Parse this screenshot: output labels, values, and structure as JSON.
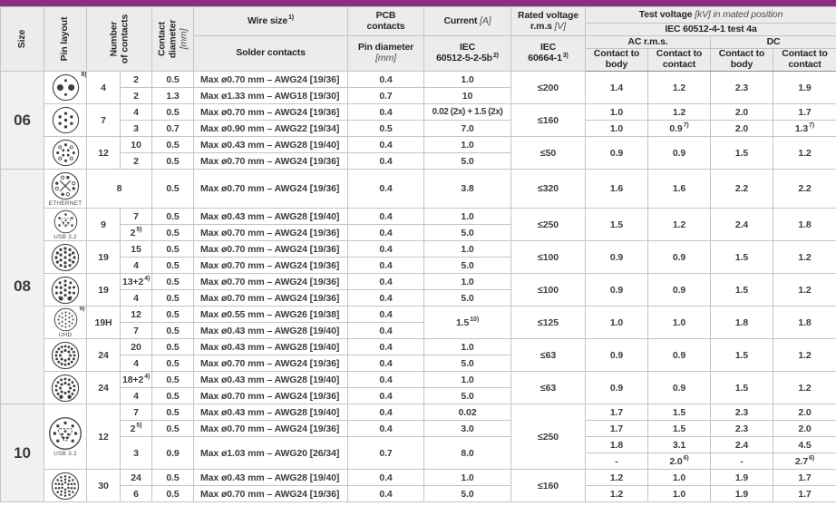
{
  "accent_color": "#8e2b86",
  "header": {
    "size": "Size",
    "pin_layout": "Pin layout",
    "number_l1": "Number",
    "number_l2": "of contacts",
    "contact_l1": "Contact",
    "contact_l2": "diameter",
    "contact_unit": "[mm]",
    "wire_size": "Wire size",
    "wire_size_sup": "1)",
    "solder_contacts": "Solder contacts",
    "pcb_l1": "PCB",
    "pcb_l2": "contacts",
    "pin_diameter": "Pin diameter",
    "pin_diameter_unit": "[mm]",
    "current": "Current",
    "current_unit": "[A]",
    "current_std_l1": "IEC",
    "current_std_l2": "60512-5-2-5b",
    "current_std_sup": "2)",
    "rated_voltage": "Rated voltage",
    "rated_voltage_l2": "r.m.s",
    "rated_voltage_unit": "[V]",
    "rated_std_l1": "IEC",
    "rated_std_l2": "60664-1",
    "rated_std_sup": "3)",
    "test_voltage": "Test voltage",
    "test_voltage_note": "[kV] in mated position",
    "test_std": "IEC 60512-4-1 test 4a",
    "ac": "AC r.m.s.",
    "dc": "DC",
    "ctb": "Contact to body",
    "ctc": "Contact to contact"
  },
  "body_rows": [
    {
      "cells": [
        {
          "t": "06",
          "rs": 6,
          "cls": "sz",
          "name": "size-label"
        },
        {
          "icon": "pin-4",
          "sup": "8)",
          "rs": 2
        },
        {
          "t": "4",
          "rs": 2
        },
        {
          "t": "2"
        },
        {
          "t": "0.5"
        },
        {
          "t": "Max ø0.70 mm – AWG24  [19/36]",
          "cls": "lt"
        },
        {
          "t": "0.4"
        },
        {
          "t": "1.0"
        },
        {
          "t": "≤200",
          "rs": 2
        },
        {
          "t": "1.4",
          "rs": 2
        },
        {
          "t": "1.2",
          "rs": 2
        },
        {
          "t": "2.3",
          "rs": 2
        },
        {
          "t": "1.9",
          "rs": 2
        }
      ]
    },
    {
      "cells": [
        {
          "t": "2"
        },
        {
          "t": "1.3"
        },
        {
          "t": "Max ø1.33 mm – AWG18  [19/30]",
          "cls": "lt"
        },
        {
          "t": "0.7"
        },
        {
          "t": "10"
        }
      ]
    },
    {
      "cls": "g",
      "cells": [
        {
          "icon": "pin-7",
          "rs": 2
        },
        {
          "t": "7",
          "rs": 2
        },
        {
          "t": "4"
        },
        {
          "t": "0.5"
        },
        {
          "t": "Max ø0.70 mm – AWG24  [19/36]",
          "cls": "lt"
        },
        {
          "t": "0.4"
        },
        {
          "t": "0.02 (2x) + 1.5 (2x)",
          "cls": "tt"
        },
        {
          "t": "≤160",
          "rs": 2
        },
        {
          "t": "1.0"
        },
        {
          "t": "1.2"
        },
        {
          "t": "2.0"
        },
        {
          "t": "1.7"
        }
      ]
    },
    {
      "cells": [
        {
          "t": "3"
        },
        {
          "t": "0.7"
        },
        {
          "t": "Max ø0.90 mm – AWG22  [19/34]",
          "cls": "lt"
        },
        {
          "t": "0.5"
        },
        {
          "t": "7.0"
        },
        {
          "t": "1.0"
        },
        {
          "t": "0.9",
          "sup": "7)"
        },
        {
          "t": "2.0"
        },
        {
          "t": "1.3",
          "sup": "7)"
        }
      ]
    },
    {
      "cls": "g",
      "cells": [
        {
          "icon": "pin-12",
          "rs": 2
        },
        {
          "t": "12",
          "rs": 2
        },
        {
          "t": "10"
        },
        {
          "t": "0.5"
        },
        {
          "t": "Max ø0.43 mm – AWG28  [19/40]",
          "cls": "lt"
        },
        {
          "t": "0.4"
        },
        {
          "t": "1.0"
        },
        {
          "t": "≤50",
          "rs": 2
        },
        {
          "t": "0.9",
          "rs": 2
        },
        {
          "t": "0.9",
          "rs": 2
        },
        {
          "t": "1.5",
          "rs": 2
        },
        {
          "t": "1.2",
          "rs": 2
        }
      ]
    },
    {
      "cells": [
        {
          "t": "2"
        },
        {
          "t": "0.5"
        },
        {
          "t": "Max ø0.70 mm – AWG24  [19/36]",
          "cls": "lt"
        },
        {
          "t": "0.4"
        },
        {
          "t": "5.0"
        }
      ]
    },
    {
      "cls": "s",
      "cells": [
        {
          "t": "08",
          "rs": 13,
          "cls": "sz",
          "name": "size-label"
        },
        {
          "icon": "eth-8",
          "label": "ETHERNET",
          "name": "ethernet-pin-layout-icon"
        },
        {
          "t": "8",
          "cs": 2
        },
        {
          "t": "0.5"
        },
        {
          "t": "Max ø0.70 mm – AWG24  [19/36]",
          "cls": "lt"
        },
        {
          "t": "0.4"
        },
        {
          "t": "3.8"
        },
        {
          "t": "≤320"
        },
        {
          "t": "1.6"
        },
        {
          "t": "1.6"
        },
        {
          "t": "2.2"
        },
        {
          "t": "2.2"
        }
      ]
    },
    {
      "cls": "g",
      "cells": [
        {
          "icon": "usb-9",
          "label": "USB 3.2",
          "rs": 2,
          "name": "usb32-pin-layout-icon"
        },
        {
          "t": "9",
          "rs": 2
        },
        {
          "t": "7"
        },
        {
          "t": "0.5"
        },
        {
          "t": "Max ø0.43 mm – AWG28  [19/40]",
          "cls": "lt"
        },
        {
          "t": "0.4"
        },
        {
          "t": "1.0"
        },
        {
          "t": "≤250",
          "rs": 2
        },
        {
          "t": "1.5",
          "rs": 2
        },
        {
          "t": "1.2",
          "rs": 2
        },
        {
          "t": "2.4",
          "rs": 2
        },
        {
          "t": "1.8",
          "rs": 2
        }
      ]
    },
    {
      "cells": [
        {
          "t": "2",
          "sup": "5)"
        },
        {
          "t": "0.5"
        },
        {
          "t": "Max ø0.70 mm – AWG24  [19/36]",
          "cls": "lt"
        },
        {
          "t": "0.4"
        },
        {
          "t": "5.0"
        }
      ]
    },
    {
      "cls": "g",
      "cells": [
        {
          "icon": "pin-19",
          "rs": 2
        },
        {
          "t": "19",
          "rs": 2
        },
        {
          "t": "15"
        },
        {
          "t": "0.5"
        },
        {
          "t": "Max ø0.70 mm – AWG24  [19/36]",
          "cls": "lt"
        },
        {
          "t": "0.4"
        },
        {
          "t": "1.0"
        },
        {
          "t": "≤100",
          "rs": 2
        },
        {
          "t": "0.9",
          "rs": 2
        },
        {
          "t": "0.9",
          "rs": 2
        },
        {
          "t": "1.5",
          "rs": 2
        },
        {
          "t": "1.2",
          "rs": 2
        }
      ]
    },
    {
      "cells": [
        {
          "t": "4"
        },
        {
          "t": "0.5"
        },
        {
          "t": "Max ø0.70 mm – AWG24  [19/36]",
          "cls": "lt"
        },
        {
          "t": "0.4"
        },
        {
          "t": "5.0"
        }
      ]
    },
    {
      "cls": "g",
      "cells": [
        {
          "icon": "pin-19-aux",
          "rs": 2
        },
        {
          "t": "19",
          "rs": 2
        },
        {
          "t": "13+2",
          "sup": "4)"
        },
        {
          "t": "0.5"
        },
        {
          "t": "Max ø0.70 mm – AWG24  [19/36]",
          "cls": "lt"
        },
        {
          "t": "0.4"
        },
        {
          "t": "1.0"
        },
        {
          "t": "≤100",
          "rs": 2
        },
        {
          "t": "0.9",
          "rs": 2
        },
        {
          "t": "0.9",
          "rs": 2
        },
        {
          "t": "1.5",
          "rs": 2
        },
        {
          "t": "1.2",
          "rs": 2
        }
      ]
    },
    {
      "cells": [
        {
          "t": "4"
        },
        {
          "t": "0.5"
        },
        {
          "t": "Max ø0.70 mm – AWG24  [19/36]",
          "cls": "lt"
        },
        {
          "t": "0.4"
        },
        {
          "t": "5.0"
        }
      ]
    },
    {
      "cls": "g",
      "cells": [
        {
          "icon": "pin-19h",
          "sup": "9)",
          "label": "UHD",
          "rs": 2,
          "name": "uhd-pin-layout-icon"
        },
        {
          "t": "19H",
          "rs": 2
        },
        {
          "t": "12"
        },
        {
          "t": "0.5"
        },
        {
          "t": "Max ø0.55 mm – AWG26  [19/38]",
          "cls": "lt"
        },
        {
          "t": "0.4"
        },
        {
          "t": "1.5",
          "sup": "10)",
          "rs": 2
        },
        {
          "t": "≤125",
          "rs": 2
        },
        {
          "t": "1.0",
          "rs": 2
        },
        {
          "t": "1.0",
          "rs": 2
        },
        {
          "t": "1.8",
          "rs": 2
        },
        {
          "t": "1.8",
          "rs": 2
        }
      ]
    },
    {
      "cells": [
        {
          "t": "7"
        },
        {
          "t": "0.5"
        },
        {
          "t": "Max ø0.43 mm – AWG28  [19/40]",
          "cls": "lt"
        },
        {
          "t": "0.4"
        }
      ]
    },
    {
      "cls": "g",
      "cells": [
        {
          "icon": "pin-24",
          "rs": 2
        },
        {
          "t": "24",
          "rs": 2
        },
        {
          "t": "20"
        },
        {
          "t": "0.5"
        },
        {
          "t": "Max ø0.43 mm – AWG28  [19/40]",
          "cls": "lt"
        },
        {
          "t": "0.4"
        },
        {
          "t": "1.0"
        },
        {
          "t": "≤63",
          "rs": 2
        },
        {
          "t": "0.9",
          "rs": 2
        },
        {
          "t": "0.9",
          "rs": 2
        },
        {
          "t": "1.5",
          "rs": 2
        },
        {
          "t": "1.2",
          "rs": 2
        }
      ]
    },
    {
      "cells": [
        {
          "t": "4"
        },
        {
          "t": "0.5"
        },
        {
          "t": "Max ø0.70 mm – AWG24  [19/36]",
          "cls": "lt"
        },
        {
          "t": "0.4"
        },
        {
          "t": "5.0"
        }
      ]
    },
    {
      "cls": "g",
      "cells": [
        {
          "icon": "pin-24-aux",
          "rs": 2
        },
        {
          "t": "24",
          "rs": 2
        },
        {
          "t": "18+2",
          "sup": "4)"
        },
        {
          "t": "0.5"
        },
        {
          "t": "Max ø0.43 mm – AWG28  [19/40]",
          "cls": "lt"
        },
        {
          "t": "0.4"
        },
        {
          "t": "1.0"
        },
        {
          "t": "≤63",
          "rs": 2
        },
        {
          "t": "0.9",
          "rs": 2
        },
        {
          "t": "0.9",
          "rs": 2
        },
        {
          "t": "1.5",
          "rs": 2
        },
        {
          "t": "1.2",
          "rs": 2
        }
      ]
    },
    {
      "cells": [
        {
          "t": "4"
        },
        {
          "t": "0.5"
        },
        {
          "t": "Max ø0.70 mm – AWG24  [19/36]",
          "cls": "lt"
        },
        {
          "t": "0.4"
        },
        {
          "t": "5.0"
        }
      ]
    },
    {
      "cls": "s",
      "cells": [
        {
          "t": "10",
          "rs": 6,
          "cls": "sz",
          "name": "size-label"
        },
        {
          "icon": "usb-12",
          "label": "USB 3.2",
          "rs": 4,
          "name": "usb32-pin-layout-icon"
        },
        {
          "t": "12",
          "rs": 4
        },
        {
          "t": "7"
        },
        {
          "t": "0.5"
        },
        {
          "t": "Max ø0.43 mm – AWG28  [19/40]",
          "cls": "lt"
        },
        {
          "t": "0.4"
        },
        {
          "t": "0.02"
        },
        {
          "t": "≤250",
          "rs": 4
        },
        {
          "t": "1.7"
        },
        {
          "t": "1.5"
        },
        {
          "t": "2.3"
        },
        {
          "t": "2.0"
        }
      ]
    },
    {
      "cells": [
        {
          "t": "2",
          "sup": "5)"
        },
        {
          "t": "0.5"
        },
        {
          "t": "Max ø0.70 mm – AWG24  [19/36]",
          "cls": "lt"
        },
        {
          "t": "0.4"
        },
        {
          "t": "3.0"
        },
        {
          "t": "1.7"
        },
        {
          "t": "1.5"
        },
        {
          "t": "2.3"
        },
        {
          "t": "2.0"
        }
      ]
    },
    {
      "cells": [
        {
          "t": "3",
          "rs": 2
        },
        {
          "t": "0.9",
          "rs": 2
        },
        {
          "t": "Max ø1.03 mm – AWG20  [26/34]",
          "cls": "lt",
          "rs": 2
        },
        {
          "t": "0.7",
          "rs": 2
        },
        {
          "t": "8.0",
          "rs": 2
        },
        {
          "t": "1.8"
        },
        {
          "t": "3.1"
        },
        {
          "t": "2.4"
        },
        {
          "t": "4.5"
        }
      ]
    },
    {
      "cells": [
        {
          "t": "-"
        },
        {
          "t": "2.0",
          "sup": "6)"
        },
        {
          "t": "-"
        },
        {
          "t": "2.7",
          "sup": "6)"
        }
      ]
    },
    {
      "cls": "g",
      "cells": [
        {
          "icon": "pin-30",
          "rs": 2
        },
        {
          "t": "30",
          "rs": 2
        },
        {
          "t": "24"
        },
        {
          "t": "0.5"
        },
        {
          "t": "Max ø0.43 mm – AWG28  [19/40]",
          "cls": "lt"
        },
        {
          "t": "0.4"
        },
        {
          "t": "1.0"
        },
        {
          "t": "≤160",
          "rs": 2
        },
        {
          "t": "1.2"
        },
        {
          "t": "1.0"
        },
        {
          "t": "1.9"
        },
        {
          "t": "1.7"
        }
      ]
    },
    {
      "cells": [
        {
          "t": "6"
        },
        {
          "t": "0.5"
        },
        {
          "t": "Max ø0.70 mm – AWG24  [19/36]",
          "cls": "lt"
        },
        {
          "t": "0.4"
        },
        {
          "t": "5.0"
        },
        {
          "t": "1.2"
        },
        {
          "t": "1.0"
        },
        {
          "t": "1.9"
        },
        {
          "t": "1.7"
        }
      ]
    }
  ]
}
